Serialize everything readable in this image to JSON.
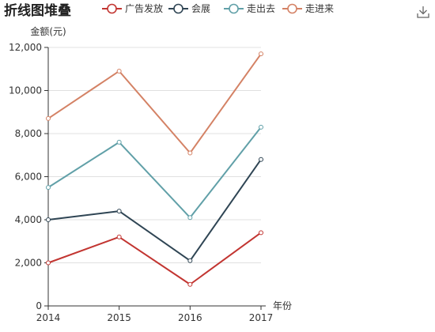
{
  "chart_data": {
    "type": "line",
    "stacked": true,
    "title": "折线图堆叠",
    "xlabel": "年份",
    "ylabel": "金额(元)",
    "categories": [
      "2014",
      "2015",
      "2016",
      "2017"
    ],
    "ylim": [
      0,
      12000
    ],
    "yticks": [
      0,
      2000,
      4000,
      6000,
      8000,
      10000,
      12000
    ],
    "ytick_labels": [
      "0",
      "2,000",
      "4,000",
      "6,000",
      "8,000",
      "10,000",
      "12,000"
    ],
    "grid": true,
    "legend_position": "top",
    "series": [
      {
        "name": "广告发放",
        "values": [
          2000,
          3200,
          1000,
          3400
        ],
        "color": "#c23531"
      },
      {
        "name": "会展",
        "values": [
          2000,
          1200,
          1100,
          3400
        ],
        "color": "#2f4554"
      },
      {
        "name": "走出去",
        "values": [
          1500,
          3200,
          2000,
          1500
        ],
        "color": "#61a0a8"
      },
      {
        "name": "走进来",
        "values": [
          3200,
          3300,
          3000,
          3400
        ],
        "color": "#d48265"
      }
    ]
  },
  "toolbox": {
    "download_icon": "download-icon"
  }
}
